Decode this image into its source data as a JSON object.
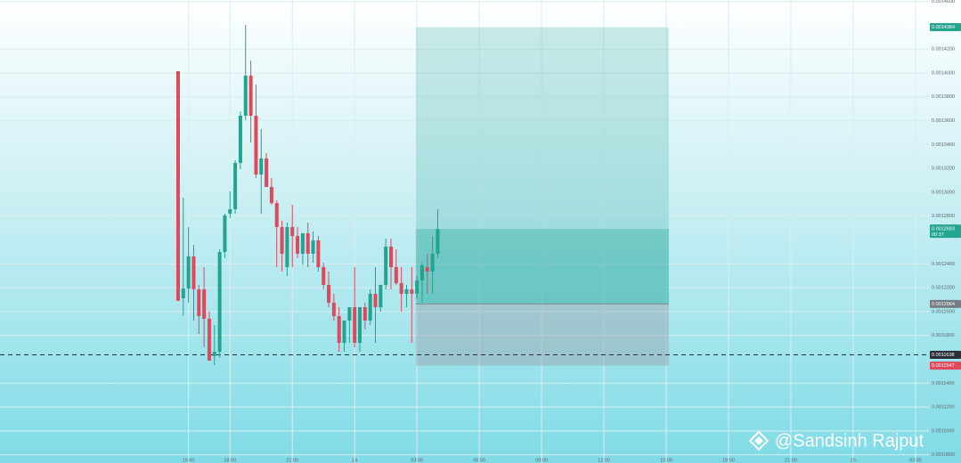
{
  "chart_data": {
    "type": "candlestick",
    "open": [
      0.0014015,
      0.0012112,
      0.0012194,
      0.0012463,
      0.0012187,
      0.0012187,
      0.001194,
      0.0011627,
      0.0011664,
      0.00125,
      0.0012821,
      0.0012858,
      0.0013246,
      0.0013642,
      0.0013978,
      0.0013642,
      0.0013149,
      0.0013284,
      0.0013045,
      0.001291,
      0.0012709,
      0.0012373,
      0.0012709,
      0.0012634,
      0.0012485,
      0.0012657,
      0.0012485,
      0.0012597,
      0.0012373,
      0.0012224,
      0.0012075,
      0.0011963,
      0.0011739,
      0.0011925,
      0.0012037,
      0.0011739,
      0.0012037,
      0.0011925,
      0.0012149,
      0.0012037,
      0.0012224,
      0.0012545,
      0.0012373,
      0.0012239,
      0.0012149,
      0.0012187,
      0.0012149,
      0.0012261,
      0.0012373,
      0.0012336,
      0.0012485
    ],
    "high": [
      0.0014015,
      0.0012955,
      0.0012709,
      0.001256,
      0.0012224,
      0.0012373,
      0.0012,
      0.0011888,
      0.0012522,
      0.0012821,
      0.0013008,
      0.0013269,
      0.0013679,
      0.0014403,
      0.0014105,
      0.0013903,
      0.001353,
      0.0013328,
      0.0013119,
      0.0012933,
      0.0012761,
      0.0012746,
      0.0012896,
      0.0012709,
      0.0012657,
      0.0012746,
      0.0012672,
      0.0012634,
      0.001241,
      0.0012336,
      0.0012149,
      0.0012037,
      0.0011925,
      0.0012037,
      0.0012373,
      0.0012037,
      0.0012075,
      0.0012187,
      0.0012373,
      0.0012224,
      0.0012612,
      0.0012612,
      0.0012522,
      0.0012373,
      0.0012224,
      0.0012373,
      0.0012298,
      0.001241,
      0.0012485,
      0.0012634,
      0.0012858
    ],
    "low": [
      0.001209,
      0.0011963,
      0.0012075,
      0.0011925,
      0.0011813,
      0.0011701,
      0.0011589,
      0.0011552,
      0.0011612,
      0.0012448,
      0.0012784,
      0.0012821,
      0.0013194,
      0.0013605,
      0.0013418,
      0.0013119,
      0.0012821,
      0.0013045,
      0.0012896,
      0.0012373,
      0.0012336,
      0.0012298,
      0.0012373,
      0.0012448,
      0.0012395,
      0.0012373,
      0.001241,
      0.0012336,
      0.0012187,
      0.0012037,
      0.0011925,
      0.0011664,
      0.0011664,
      0.0011739,
      0.0011701,
      0.0011664,
      0.0011851,
      0.0011888,
      0.0011739,
      0.0012,
      0.0012187,
      0.0012187,
      0.0012224,
      0.0012,
      0.0012037,
      0.0011739,
      0.0012112,
      0.0012075,
      0.0012149,
      0.0012149,
      0.0012448
    ],
    "close": [
      0.001209,
      0.0012194,
      0.0012463,
      0.0012187,
      0.0011963,
      0.001194,
      0.0011589,
      0.0011664,
      0.00125,
      0.0012806,
      0.0012858,
      0.0013246,
      0.0013642,
      0.0013978,
      0.0013642,
      0.0013149,
      0.0013284,
      0.0013045,
      0.001291,
      0.0012709,
      0.0012485,
      0.0012709,
      0.0012634,
      0.0012485,
      0.0012657,
      0.0012485,
      0.0012597,
      0.0012373,
      0.0012224,
      0.0012075,
      0.0011963,
      0.0011739,
      0.0011925,
      0.0012037,
      0.0011739,
      0.0012037,
      0.0011925,
      0.0012149,
      0.0012037,
      0.0012224,
      0.0012545,
      0.0012373,
      0.0012239,
      0.0012149,
      0.0012187,
      0.0012149,
      0.0012261,
      0.0012388,
      0.0012336,
      0.0012485,
      0.0012693
    ],
    "up_color": "#22a48f",
    "down_color": "#e0485c",
    "ylim": [
      0.0010731,
      0.0014612
    ],
    "yticks": [
      {
        "value": 0.00146,
        "label": "0.0014600"
      },
      {
        "value": 0.00142,
        "label": "0.0014200"
      },
      {
        "value": 0.0014,
        "label": "0.0014000"
      },
      {
        "value": 0.00138,
        "label": "0.0013800"
      },
      {
        "value": 0.00136,
        "label": "0.0013600"
      },
      {
        "value": 0.00134,
        "label": "0.0013400"
      },
      {
        "value": 0.00132,
        "label": "0.0013200"
      },
      {
        "value": 0.0013,
        "label": "0.0013000"
      },
      {
        "value": 0.00128,
        "label": "0.0012800"
      },
      {
        "value": 0.00124,
        "label": "0.0012400"
      },
      {
        "value": 0.00122,
        "label": "0.0012200"
      },
      {
        "value": 0.0012,
        "label": "0.0012000"
      },
      {
        "value": 0.00118,
        "label": "0.0011800"
      },
      {
        "value": 0.00114,
        "label": "0.0011400"
      },
      {
        "value": 0.00112,
        "label": "0.0011200"
      },
      {
        "value": 0.0011,
        "label": "0.0011000"
      },
      {
        "value": 0.00108,
        "label": "0.0010800"
      }
    ],
    "xlim": [
      -34.3,
      144.6
    ],
    "xticks": [
      {
        "value": 2,
        "label": "16:00"
      },
      {
        "value": 10,
        "label": "18:00"
      },
      {
        "value": 22,
        "label": "21:00"
      },
      {
        "value": 34,
        "label": "14"
      },
      {
        "value": 46,
        "label": "03:00"
      },
      {
        "value": 58,
        "label": "06:00"
      },
      {
        "value": 70,
        "label": "09:00"
      },
      {
        "value": 82,
        "label": "12:00"
      },
      {
        "value": 94,
        "label": "15:00"
      },
      {
        "value": 106,
        "label": "18:00"
      },
      {
        "value": 118,
        "label": "21:00"
      },
      {
        "value": 130,
        "label": "15"
      },
      {
        "value": 142,
        "label": "03:00"
      }
    ],
    "grid": true,
    "position": {
      "start": 45.8,
      "end": 94.5,
      "target": 0.0014384,
      "entry": 0.0012064,
      "stop": 0.0011547
    },
    "current_price": 0.0012693,
    "countdown": "00:37",
    "marker_line": 0.0011638,
    "watermark": "@Sandsinh Rajput"
  }
}
